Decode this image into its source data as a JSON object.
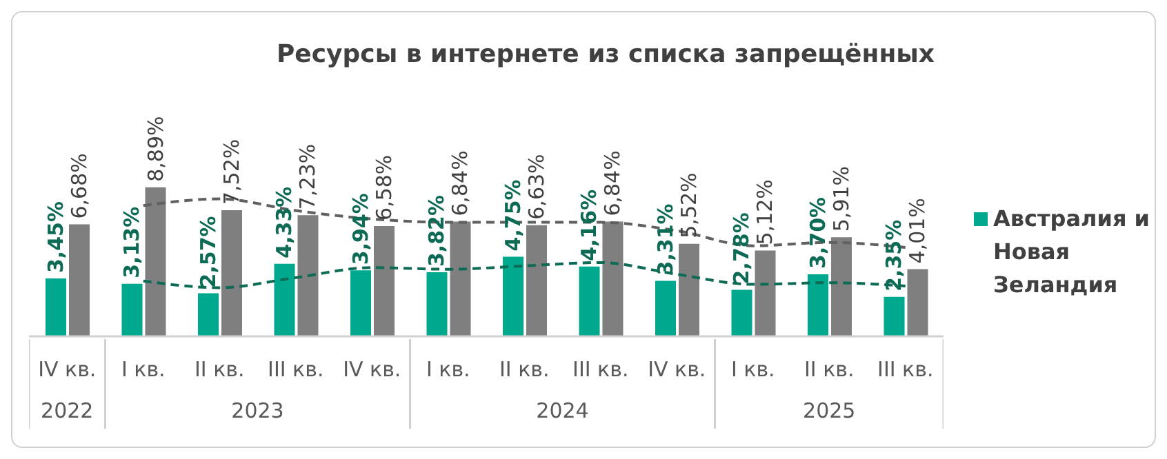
{
  "chart_data": {
    "type": "bar",
    "title": "Ресурсы в интернете из списка запрещённых",
    "categories": [
      "IV кв.",
      "I кв.",
      "II кв.",
      "III кв.",
      "IV кв.",
      "I кв.",
      "II кв.",
      "III кв.",
      "IV кв.",
      "I кв.",
      "II кв.",
      "III кв."
    ],
    "series": [
      {
        "name": "Австралия и Новая Зеландия",
        "color": "#00a88e",
        "values": [
          3.45,
          3.13,
          2.57,
          4.33,
          3.94,
          3.82,
          4.75,
          4.16,
          3.31,
          2.78,
          3.7,
          2.35
        ],
        "value_labels": [
          "3,45%",
          "3,13%",
          "2,57%",
          "4,33%",
          "3,94%",
          "3,82%",
          "4,75%",
          "4,16%",
          "3,31%",
          "2,78%",
          "3,70%",
          "2,35%"
        ]
      },
      {
        "color": "#7f7f7f",
        "values": [
          6.68,
          8.89,
          7.52,
          7.23,
          6.58,
          6.84,
          6.63,
          6.84,
          5.52,
          5.12,
          5.91,
          4.01
        ],
        "value_labels": [
          "6,68%",
          "8,89%",
          "7,52%",
          "7,23%",
          "6,58%",
          "6,84%",
          "6,63%",
          "6,84%",
          "5,52%",
          "5,12%",
          "5,91%",
          "4,01%"
        ]
      },
      {
        "type": "line",
        "color": "#0d6b55",
        "line_style": "dashed",
        "values": [
          null,
          3.3,
          2.9,
          3.5,
          4.1,
          4.0,
          4.2,
          4.4,
          3.7,
          3.1,
          3.2,
          3.0
        ]
      },
      {
        "type": "line",
        "color": "#606060",
        "line_style": "dashed",
        "values": [
          null,
          7.8,
          8.2,
          7.5,
          7.0,
          6.8,
          6.8,
          6.8,
          6.3,
          5.4,
          5.6,
          5.3
        ]
      }
    ],
    "annotations": [
      "2022",
      "2023",
      "2024",
      "2025"
    ],
    "marker": "none",
    "legend": "right",
    "grid": false
  }
}
